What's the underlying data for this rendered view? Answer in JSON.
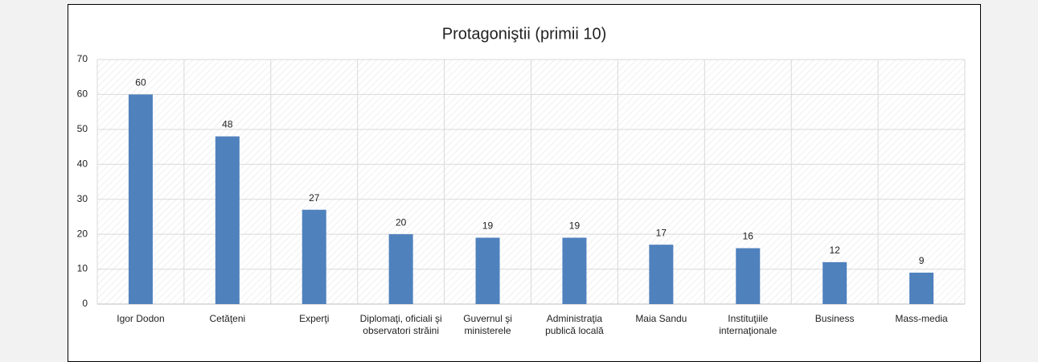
{
  "chart_data": {
    "type": "bar",
    "title": "Protagoniştii (primii 10)",
    "categories": [
      "Igor Dodon",
      "Cetăţeni",
      "Experţi",
      "Diplomaţi, oficiali şi observatori străini",
      "Guvernul şi ministerele",
      "Administraţia publică locală",
      "Maia Sandu",
      "Instituţiile internaţionale",
      "Business",
      "Mass-media"
    ],
    "values": [
      60,
      48,
      27,
      20,
      19,
      19,
      17,
      16,
      12,
      9
    ],
    "color": "#4f81bd",
    "ylim": [
      0,
      70
    ],
    "yticks": [
      0,
      10,
      20,
      30,
      40,
      50,
      60,
      70
    ],
    "grid": true
  }
}
